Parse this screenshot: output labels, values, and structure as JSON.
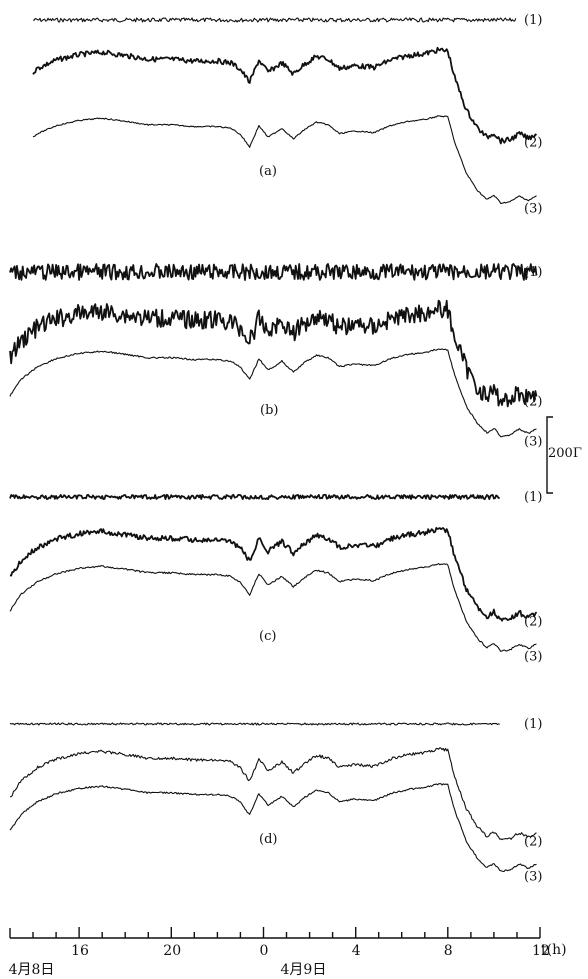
{
  "chart_data": {
    "type": "line",
    "x_axis": {
      "unit_label": "t(h)",
      "ticks": [
        "16",
        "20",
        "0",
        "4",
        "8",
        "12"
      ],
      "tick_hours": [
        16,
        20,
        24,
        28,
        32,
        36
      ],
      "range": [
        13,
        36
      ],
      "date_labels": [
        {
          "text": "4月8日",
          "hour": 13.2
        },
        {
          "text": "4月9日",
          "hour": 25.0
        }
      ]
    },
    "scale_bar": {
      "label": "200 nT",
      "display_text": "200Γ"
    },
    "panels": [
      {
        "label": "(a)",
        "series": [
          {
            "name": "(1)",
            "role": "flat",
            "noise": 2.0
          },
          {
            "name": "(2)",
            "role": "upper",
            "noise": 2.5
          },
          {
            "name": "(3)",
            "role": "lower",
            "noise": 0.6
          }
        ]
      },
      {
        "label": "(b)",
        "series": [
          {
            "name": "(1)",
            "role": "flat",
            "noise": 8.0
          },
          {
            "name": "(2)",
            "role": "upper",
            "noise": 9.0
          },
          {
            "name": "(3)",
            "role": "lower",
            "noise": 0.8
          }
        ]
      },
      {
        "label": "(c)",
        "series": [
          {
            "name": "(1)",
            "role": "flat",
            "noise": 2.2
          },
          {
            "name": "(2)",
            "role": "upper",
            "noise": 2.6
          },
          {
            "name": "(3)",
            "role": "lower",
            "noise": 0.8
          }
        ]
      },
      {
        "label": "(d)",
        "series": [
          {
            "name": "(1)",
            "role": "flat",
            "noise": 1.0
          },
          {
            "name": "(2)",
            "role": "upper",
            "noise": 1.4
          },
          {
            "name": "(3)",
            "role": "lower",
            "noise": 0.8
          }
        ]
      }
    ],
    "relative_variation_curve": {
      "hours": [
        13.0,
        13.5,
        14.2,
        15.0,
        16.0,
        17.0,
        18.0,
        19.0,
        20.0,
        21.0,
        22.0,
        22.6,
        23.0,
        23.4,
        23.8,
        24.2,
        24.8,
        25.3,
        25.8,
        26.3,
        26.8,
        27.3,
        28.0,
        28.8,
        29.5,
        30.3,
        31.0,
        31.6,
        32.0,
        32.3,
        32.8,
        33.3,
        33.7,
        34.0,
        34.3,
        34.7,
        35.1,
        35.5,
        35.9
      ],
      "level": [
        -6,
        32,
        60,
        78,
        90,
        95,
        88,
        80,
        80,
        76,
        76,
        72,
        58,
        30,
        78,
        52,
        72,
        48,
        70,
        86,
        80,
        60,
        66,
        62,
        78,
        88,
        92,
        100,
        98,
        40,
        -30,
        -70,
        -90,
        -80,
        -98,
        -95,
        -82,
        -92,
        -80
      ]
    }
  }
}
